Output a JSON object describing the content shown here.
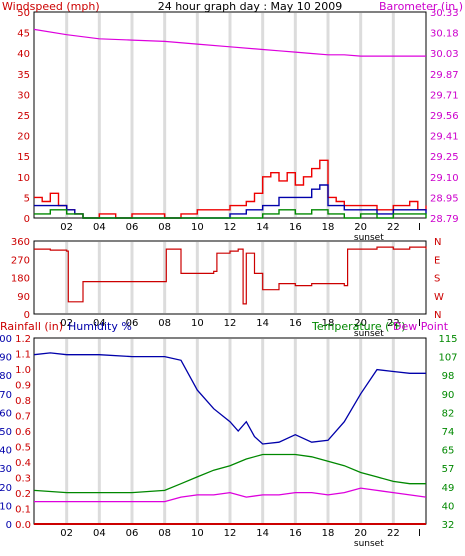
{
  "header": {
    "windspeed_label": "Windspeed (mph)",
    "title": "24 hour graph day : May 10 2009",
    "barometer_label": "Barometer (in.)"
  },
  "colors": {
    "wind_avg": "#0000aa",
    "wind_gust": "#ee0000",
    "wind_lull": "#008800",
    "barometer": "#dd00dd",
    "direction": "#cc0000",
    "humidity": "#0000aa",
    "temperature": "#008800",
    "dewpoint": "#dd00dd",
    "rainfall": "#cc0000",
    "left_axis": "#cc0000",
    "right_axis": "#cc00cc",
    "temp_axis": "#008800",
    "hum_axis": "#0000aa"
  },
  "x_axis": {
    "ticks": [
      "02",
      "04",
      "06",
      "08",
      "10",
      "12",
      "14",
      "16",
      "18",
      "20",
      "22",
      "I"
    ],
    "sunset_label": "sunset"
  },
  "chart_data": [
    {
      "type": "line",
      "name": "wind-barometer",
      "y_left_label": "Windspeed (mph)",
      "y_left_ticks": [
        0,
        5,
        10,
        15,
        20,
        25,
        30,
        35,
        40,
        45,
        50
      ],
      "y_left_range": [
        0,
        50
      ],
      "y_right_label": "Barometer (in.)",
      "y_right_ticks": [
        "28.79",
        "28.95",
        "29.10",
        "29.25",
        "29.41",
        "29.56",
        "29.71",
        "29.87",
        "30.03",
        "30.18",
        "30.33"
      ],
      "y_right_range": [
        28.79,
        30.33
      ],
      "x_range": [
        0,
        24
      ],
      "series": [
        {
          "key": "barometer",
          "axis": "right",
          "x": [
            0,
            2,
            4,
            6,
            8,
            10,
            12,
            14,
            15,
            16,
            17,
            18,
            19,
            20,
            21,
            22,
            23,
            24
          ],
          "values": [
            30.2,
            30.16,
            30.13,
            30.12,
            30.11,
            30.09,
            30.07,
            30.05,
            30.04,
            30.03,
            30.02,
            30.01,
            30.01,
            30.0,
            30.0,
            30.0,
            30.0,
            30.0
          ]
        },
        {
          "key": "wind_gust",
          "axis": "left",
          "x": [
            0,
            0.5,
            1,
            1.5,
            2,
            2.5,
            3,
            4,
            5,
            6,
            7,
            8,
            9,
            10,
            11,
            12,
            12.5,
            13,
            13.5,
            14,
            14.5,
            15,
            15.5,
            16,
            16.5,
            17,
            17.5,
            18,
            18.5,
            19,
            20,
            21,
            22,
            23,
            23.5,
            24
          ],
          "values": [
            5,
            4,
            6,
            3,
            2,
            1,
            0,
            1,
            0,
            1,
            1,
            0,
            1,
            2,
            2,
            3,
            3,
            4,
            6,
            10,
            11,
            9,
            11,
            8,
            10,
            12,
            14,
            5,
            4,
            3,
            3,
            2,
            3,
            4,
            2,
            3
          ]
        },
        {
          "key": "wind_avg",
          "axis": "left",
          "x": [
            0,
            1,
            2,
            2.5,
            3,
            4,
            6,
            8,
            10,
            12,
            13,
            14,
            15,
            16,
            17,
            17.5,
            18,
            19,
            20,
            21,
            22,
            23,
            24
          ],
          "values": [
            3,
            3,
            2,
            1,
            0,
            0,
            0,
            0,
            0,
            1,
            2,
            3,
            5,
            5,
            7,
            8,
            3,
            2,
            2,
            1,
            2,
            2,
            1
          ]
        },
        {
          "key": "wind_lull",
          "axis": "left",
          "x": [
            0,
            1,
            2,
            3,
            4,
            6,
            8,
            10,
            12,
            13,
            14,
            15,
            16,
            17,
            18,
            19,
            20,
            21,
            22,
            23,
            24
          ],
          "values": [
            1,
            2,
            1,
            0,
            0,
            0,
            0,
            0,
            0,
            0,
            1,
            2,
            1,
            2,
            1,
            0,
            1,
            0,
            1,
            1,
            0
          ]
        }
      ]
    },
    {
      "type": "line",
      "name": "wind-direction",
      "y_left_ticks": [
        0,
        90,
        180,
        270,
        360
      ],
      "y_left_range": [
        0,
        360
      ],
      "y_right_ticks": [
        "N",
        "E",
        "S",
        "W",
        "N"
      ],
      "x_range": [
        0,
        24
      ],
      "series": [
        {
          "key": "direction",
          "x": [
            0,
            1,
            2,
            2.1,
            2.8,
            3,
            4,
            6,
            8,
            8.1,
            8.8,
            9,
            10,
            11,
            11.2,
            12,
            12.5,
            12.8,
            13,
            13.5,
            14,
            14.5,
            15,
            16,
            17,
            18,
            19,
            19.2,
            20,
            21,
            22,
            23,
            24
          ],
          "values": [
            320,
            315,
            310,
            60,
            60,
            160,
            160,
            160,
            160,
            320,
            320,
            200,
            200,
            210,
            300,
            310,
            320,
            50,
            300,
            200,
            120,
            120,
            150,
            140,
            150,
            150,
            140,
            320,
            320,
            330,
            320,
            330,
            320
          ]
        }
      ]
    },
    {
      "type": "line",
      "name": "rain-humidity-temperature",
      "rain_label": "Rainfall (in)",
      "humidity_label": "Humidity %",
      "temperature_label": "Temperature (°F)",
      "dewpoint_label": "Dew Point",
      "y_rain_ticks": [
        "0.0",
        "0.1",
        "0.2",
        "0.3",
        "0.4",
        "0.5",
        "0.6",
        "0.7",
        "0.8",
        "0.9",
        "1.0",
        "1.1",
        "1.2"
      ],
      "y_humidity_ticks": [
        0,
        10,
        20,
        30,
        40,
        50,
        60,
        70,
        80,
        90,
        100
      ],
      "y_humidity_range": [
        0,
        100
      ],
      "y_temp_ticks": [
        32,
        40,
        49,
        57,
        65,
        74,
        82,
        90,
        98,
        107,
        115
      ],
      "y_temp_range": [
        32,
        115
      ],
      "x_range": [
        0,
        24
      ],
      "series": [
        {
          "key": "humidity",
          "axis": "humidity",
          "x": [
            0,
            1,
            2,
            4,
            6,
            8,
            9,
            10,
            11,
            12,
            12.5,
            13,
            13.5,
            14,
            15,
            16,
            17,
            18,
            19,
            20,
            21,
            22,
            23,
            24
          ],
          "values": [
            91,
            92,
            91,
            91,
            90,
            90,
            88,
            72,
            62,
            55,
            50,
            55,
            47,
            43,
            44,
            48,
            44,
            45,
            55,
            70,
            83,
            82,
            81,
            81
          ]
        },
        {
          "key": "temperature",
          "axis": "temp",
          "x": [
            0,
            2,
            4,
            6,
            8,
            9,
            10,
            11,
            12,
            13,
            14,
            15,
            16,
            17,
            18,
            19,
            20,
            21,
            22,
            23,
            24
          ],
          "values": [
            47,
            46,
            46,
            46,
            47,
            50,
            53,
            56,
            58,
            61,
            63,
            63,
            63,
            62,
            60,
            58,
            55,
            53,
            51,
            50,
            50
          ]
        },
        {
          "key": "dewpoint",
          "axis": "temp",
          "x": [
            0,
            2,
            4,
            6,
            8,
            9,
            10,
            11,
            12,
            13,
            14,
            15,
            16,
            17,
            18,
            19,
            20,
            21,
            22,
            23,
            24
          ],
          "values": [
            42,
            42,
            42,
            42,
            42,
            44,
            45,
            45,
            46,
            44,
            45,
            45,
            46,
            46,
            45,
            46,
            48,
            47,
            46,
            45,
            44
          ]
        },
        {
          "key": "rainfall",
          "axis": "rain",
          "x": [
            0,
            24
          ],
          "values": [
            0,
            0
          ]
        }
      ]
    }
  ]
}
